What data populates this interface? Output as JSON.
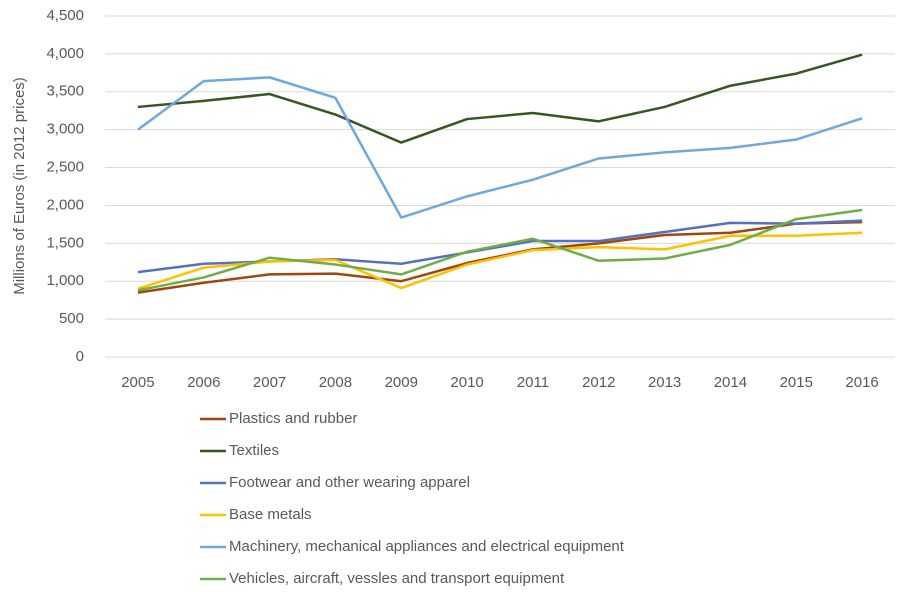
{
  "chart_data": {
    "type": "line",
    "y_label": "Millions of Euros (in 2012 prices)",
    "categories": [
      "2005",
      "2006",
      "2007",
      "2008",
      "2009",
      "2010",
      "2011",
      "2012",
      "2013",
      "2014",
      "2015",
      "2016"
    ],
    "series": [
      {
        "name": "Plastics and rubber",
        "color": "#9e480e",
        "values": [
          850,
          980,
          1090,
          1100,
          1000,
          1240,
          1420,
          1500,
          1610,
          1640,
          1760,
          1780
        ]
      },
      {
        "name": "Textiles",
        "color": "#375623",
        "values": [
          3300,
          3380,
          3470,
          3200,
          2830,
          3140,
          3220,
          3110,
          3300,
          3580,
          3740,
          3990
        ]
      },
      {
        "name": "Footwear and other wearing apparel",
        "color": "#5470c0",
        "values": [
          1120,
          1230,
          1260,
          1290,
          1230,
          1380,
          1530,
          1530,
          1650,
          1770,
          1760,
          1800
        ]
      },
      {
        "name": "Base metals",
        "color": "#ffc000",
        "values": [
          900,
          1180,
          1260,
          1280,
          910,
          1220,
          1410,
          1450,
          1420,
          1600,
          1600,
          1640
        ]
      },
      {
        "name": "Machinery, mechanical appliances and electrical equipment",
        "color": "#6fa8dc",
        "values": [
          3000,
          3640,
          3690,
          3420,
          1840,
          2120,
          2340,
          2620,
          2700,
          2760,
          2870,
          3150
        ]
      },
      {
        "name": "Vehicles, aircraft, vessles and transport equipment",
        "color": "#70ad47",
        "values": [
          880,
          1050,
          1310,
          1220,
          1090,
          1390,
          1560,
          1270,
          1300,
          1480,
          1820,
          1940
        ]
      }
    ],
    "ylim": [
      0,
      4500
    ],
    "yticks": [
      0,
      500,
      {
        "value": 1000,
        "label": "1,000"
      },
      {
        "value": 1500,
        "label": "1,500"
      },
      {
        "value": 2000,
        "label": "2,000"
      },
      {
        "value": 2500,
        "label": "2,500"
      },
      {
        "value": 3000,
        "label": "3,000"
      },
      {
        "value": 3500,
        "label": "3,500"
      },
      {
        "value": 4000,
        "label": "4,000"
      },
      {
        "value": 4500,
        "label": "4,500"
      }
    ],
    "grid": true,
    "legend": "bottom"
  }
}
